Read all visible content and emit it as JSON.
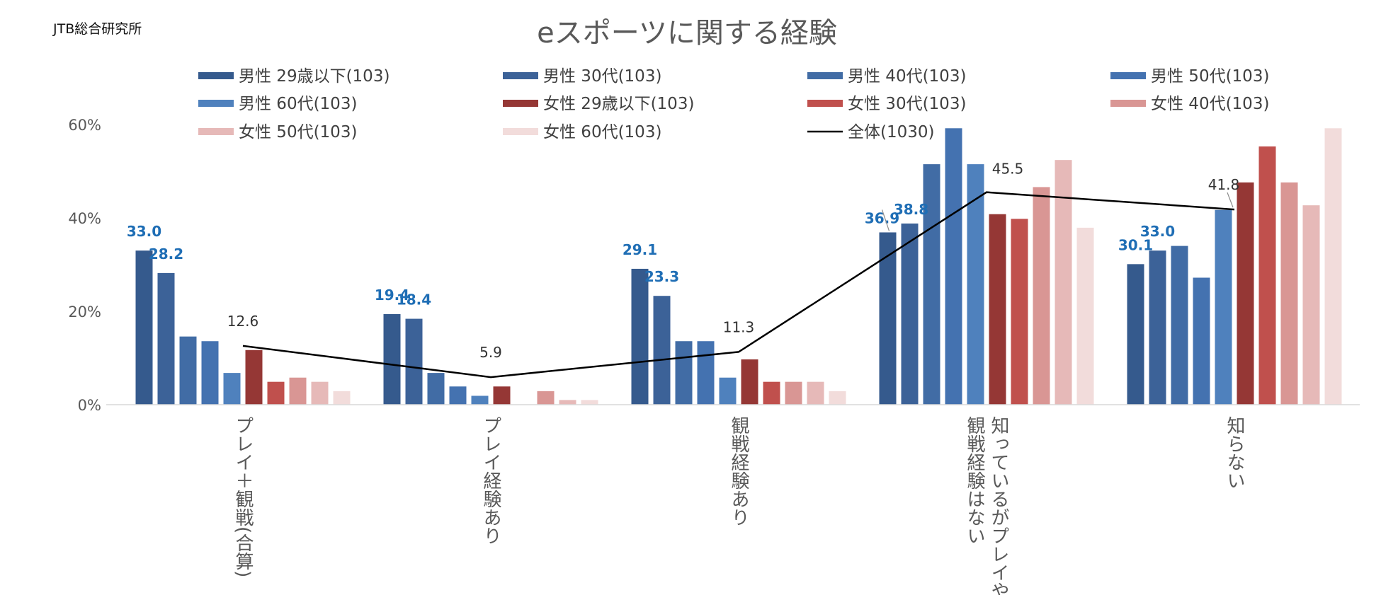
{
  "source": "JTB総合研究所",
  "chart_data": {
    "type": "bar",
    "title": "eスポーツに関する経験",
    "categories": [
      [
        "プレイ＋観戦(合算)"
      ],
      [
        "プレイ経験あり"
      ],
      [
        "観戦経験あり"
      ],
      [
        "知っているがプレイや",
        "観戦経験はない"
      ],
      [
        "知らない"
      ]
    ],
    "ylim": [
      0,
      60
    ],
    "yticks": [
      0,
      20,
      40,
      60
    ],
    "ytick_labels": [
      "0%",
      "20%",
      "40%",
      "60%"
    ],
    "series": [
      {
        "name": "男性 29歳以下(103)",
        "color": "#355a8d",
        "values": [
          33.0,
          19.4,
          29.1,
          36.9,
          30.1
        ],
        "labels": [
          "33.0",
          "19.4",
          "29.1",
          "36.9",
          "30.1"
        ]
      },
      {
        "name": "男性 30代(103)",
        "color": "#3c6298",
        "values": [
          28.2,
          18.4,
          23.3,
          38.8,
          33.0
        ],
        "labels": [
          "28.2",
          "18.4",
          "23.3",
          "38.8",
          "33.0"
        ]
      },
      {
        "name": "男性 40代(103)",
        "color": "#416ca5",
        "values": [
          14.6,
          6.8,
          13.6,
          51.5,
          34.0
        ]
      },
      {
        "name": "男性 50代(103)",
        "color": "#4472b0",
        "values": [
          13.6,
          3.9,
          13.6,
          59.2,
          27.2
        ]
      },
      {
        "name": "男性 60代(103)",
        "color": "#4f81bd",
        "values": [
          6.8,
          1.9,
          5.8,
          51.5,
          41.7
        ]
      },
      {
        "name": "女性 29歳以下(103)",
        "color": "#953735",
        "values": [
          11.7,
          3.9,
          9.7,
          40.8,
          47.6
        ]
      },
      {
        "name": "女性 30代(103)",
        "color": "#c0504d",
        "values": [
          4.9,
          0.0,
          4.9,
          39.8,
          55.3
        ]
      },
      {
        "name": "女性 40代(103)",
        "color": "#d99694",
        "values": [
          5.8,
          2.9,
          4.9,
          46.6,
          47.6
        ]
      },
      {
        "name": "女性 50代(103)",
        "color": "#e6b9b8",
        "values": [
          4.9,
          1.0,
          4.9,
          52.4,
          42.7
        ]
      },
      {
        "name": "女性 60代(103)",
        "color": "#f2dcdb",
        "values": [
          2.9,
          1.0,
          2.9,
          37.9,
          59.2
        ]
      }
    ],
    "line": {
      "name": "全体(1030)",
      "color": "#000000",
      "values": [
        12.6,
        5.9,
        11.3,
        45.5,
        41.8
      ],
      "labels": [
        "12.6",
        "5.9",
        "11.3",
        "45.5",
        "41.8"
      ]
    },
    "legend": "top"
  }
}
